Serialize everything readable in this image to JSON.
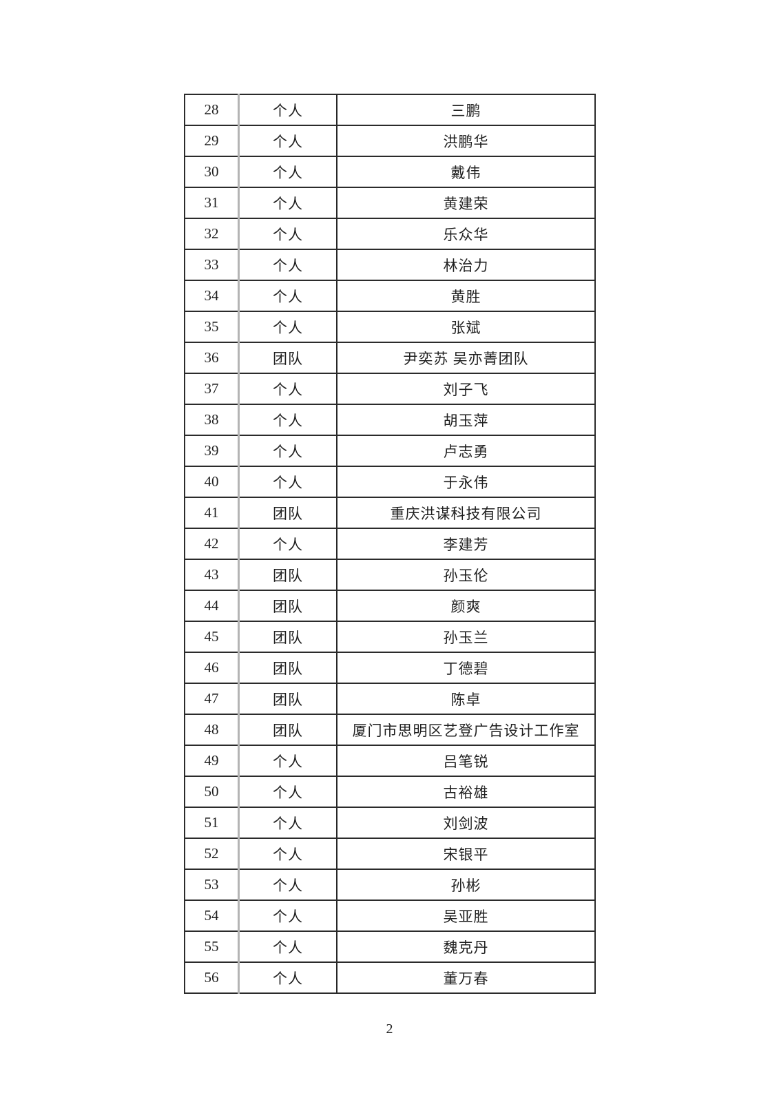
{
  "table": {
    "rows": [
      [
        "28",
        "个人",
        "三鹏"
      ],
      [
        "29",
        "个人",
        "洪鹏华"
      ],
      [
        "30",
        "个人",
        "戴伟"
      ],
      [
        "31",
        "个人",
        "黄建荣"
      ],
      [
        "32",
        "个人",
        "乐众华"
      ],
      [
        "33",
        "个人",
        "林治力"
      ],
      [
        "34",
        "个人",
        "黄胜"
      ],
      [
        "35",
        "个人",
        "张斌"
      ],
      [
        "36",
        "团队",
        "尹奕苏 吴亦菁团队"
      ],
      [
        "37",
        "个人",
        "刘子飞"
      ],
      [
        "38",
        "个人",
        "胡玉萍"
      ],
      [
        "39",
        "个人",
        "卢志勇"
      ],
      [
        "40",
        "个人",
        "于永伟"
      ],
      [
        "41",
        "团队",
        "重庆洪谋科技有限公司"
      ],
      [
        "42",
        "个人",
        "李建芳"
      ],
      [
        "43",
        "团队",
        "孙玉伦"
      ],
      [
        "44",
        "团队",
        "颜爽"
      ],
      [
        "45",
        "团队",
        "孙玉兰"
      ],
      [
        "46",
        "团队",
        "丁德碧"
      ],
      [
        "47",
        "团队",
        "陈卓"
      ],
      [
        "48",
        "团队",
        "厦门市思明区艺登广告设计工作室"
      ],
      [
        "49",
        "个人",
        "吕笔锐"
      ],
      [
        "50",
        "个人",
        "古裕雄"
      ],
      [
        "51",
        "个人",
        "刘剑波"
      ],
      [
        "52",
        "个人",
        "宋银平"
      ],
      [
        "53",
        "个人",
        "孙彬"
      ],
      [
        "54",
        "个人",
        "吴亚胜"
      ],
      [
        "55",
        "个人",
        "魏克丹"
      ],
      [
        "56",
        "个人",
        "董万春"
      ]
    ]
  },
  "footer": {
    "page_number": "2"
  },
  "colors": {
    "border_dark": "#2b2b2b",
    "border_gray": "#b4b4b4",
    "text": "#1f1f1f",
    "background": "#ffffff"
  }
}
